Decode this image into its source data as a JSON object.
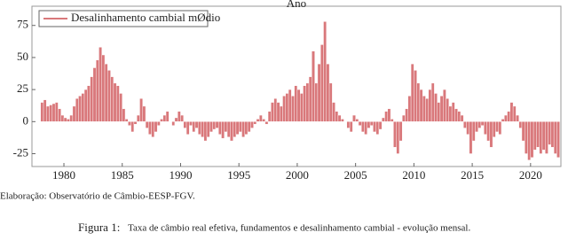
{
  "chart_data": {
    "type": "bar",
    "x_label": "Ano",
    "legend": "upper left",
    "source": "Elaboração: Observatório de Câmbio-EESP-FGV.",
    "caption_label": "Figura 1:",
    "caption": "Taxa de câmbio real efetiva, fundamentos e desalinhamento cambial - evolução mensal.",
    "xlim": [
      1977.26,
      2022.6
    ],
    "ylim": [
      -35,
      90
    ],
    "xticks": [
      1980,
      1985,
      1990,
      1995,
      2000,
      2005,
      2010,
      2015,
      2020
    ],
    "yticks": [
      -25,
      0,
      25,
      50,
      75
    ],
    "x": [
      1978,
      1978.25,
      1978.5,
      1978.75,
      1979,
      1979.25,
      1979.5,
      1979.75,
      1980,
      1980.25,
      1980.5,
      1980.75,
      1981,
      1981.25,
      1981.5,
      1981.75,
      1982,
      1982.25,
      1982.5,
      1982.75,
      1983,
      1983.25,
      1983.5,
      1983.75,
      1984,
      1984.25,
      1984.5,
      1984.75,
      1985,
      1985.25,
      1985.5,
      1985.75,
      1986,
      1986.25,
      1986.5,
      1986.75,
      1987,
      1987.25,
      1987.5,
      1987.75,
      1988,
      1988.25,
      1988.5,
      1988.75,
      1989,
      1989.25,
      1989.5,
      1989.75,
      1990,
      1990.25,
      1990.5,
      1990.75,
      1991,
      1991.25,
      1991.5,
      1991.75,
      1992,
      1992.25,
      1992.5,
      1992.75,
      1993,
      1993.25,
      1993.5,
      1993.75,
      1994,
      1994.25,
      1994.5,
      1994.75,
      1995,
      1995.25,
      1995.5,
      1995.75,
      1996,
      1996.25,
      1996.5,
      1996.75,
      1997,
      1997.25,
      1997.5,
      1997.75,
      1998,
      1998.25,
      1998.5,
      1998.75,
      1999,
      1999.25,
      1999.5,
      1999.75,
      2000,
      2000.25,
      2000.5,
      2000.75,
      2001,
      2001.25,
      2001.5,
      2001.75,
      2002,
      2002.25,
      2002.5,
      2002.75,
      2003,
      2003.25,
      2003.5,
      2003.75,
      2004,
      2004.25,
      2004.5,
      2004.75,
      2005,
      2005.25,
      2005.5,
      2005.75,
      2006,
      2006.25,
      2006.5,
      2006.75,
      2007,
      2007.25,
      2007.5,
      2007.75,
      2008,
      2008.25,
      2008.5,
      2008.75,
      2009,
      2009.25,
      2009.5,
      2009.75,
      2010,
      2010.25,
      2010.5,
      2010.75,
      2011,
      2011.25,
      2011.5,
      2011.75,
      2012,
      2012.25,
      2012.5,
      2012.75,
      2013,
      2013.25,
      2013.5,
      2013.75,
      2014,
      2014.25,
      2014.5,
      2014.75,
      2015,
      2015.25,
      2015.5,
      2015.75,
      2016,
      2016.25,
      2016.5,
      2016.75,
      2017,
      2017.25,
      2017.5,
      2017.75,
      2018,
      2018.25,
      2018.5,
      2018.75,
      2019,
      2019.25,
      2019.5,
      2019.75,
      2020,
      2020.25,
      2020.5,
      2020.75,
      2021,
      2021.25,
      2021.5,
      2021.75,
      2022,
      2022.25
    ],
    "series": [
      {
        "name": "Desalinhamento cambial mØdio",
        "color": "#d9787b",
        "values": [
          15,
          17,
          12,
          13,
          14,
          15,
          10,
          5,
          3,
          2,
          5,
          12,
          18,
          20,
          22,
          25,
          28,
          35,
          42,
          48,
          58,
          52,
          45,
          40,
          35,
          30,
          28,
          22,
          10,
          2,
          -3,
          -8,
          -2,
          5,
          18,
          12,
          -5,
          -10,
          -12,
          -8,
          -3,
          2,
          5,
          8,
          0,
          -3,
          3,
          8,
          5,
          -5,
          -10,
          -3,
          -8,
          -5,
          -10,
          -12,
          -15,
          -12,
          -8,
          -6,
          -5,
          -10,
          -13,
          -8,
          -12,
          -15,
          -12,
          -10,
          -8,
          -12,
          -10,
          -8,
          -5,
          -2,
          2,
          5,
          2,
          -2,
          8,
          15,
          18,
          15,
          12,
          20,
          22,
          25,
          20,
          28,
          25,
          22,
          28,
          30,
          35,
          55,
          30,
          45,
          60,
          78,
          45,
          30,
          15,
          8,
          5,
          2,
          0,
          -5,
          -8,
          5,
          2,
          -3,
          -8,
          -10,
          -5,
          -3,
          -8,
          -10,
          -6,
          3,
          8,
          10,
          2,
          -20,
          -25,
          -15,
          5,
          10,
          20,
          45,
          40,
          30,
          25,
          20,
          18,
          25,
          30,
          22,
          15,
          20,
          25,
          18,
          12,
          15,
          10,
          8,
          5,
          -5,
          -10,
          -25,
          -15,
          -8,
          -5,
          -3,
          -10,
          -15,
          -20,
          -12,
          -8,
          -10,
          2,
          5,
          8,
          15,
          12,
          5,
          -5,
          -15,
          -25,
          -30,
          -28,
          -22,
          -20,
          -25,
          -22,
          -25,
          -18,
          -20,
          -25,
          -28
        ]
      }
    ]
  }
}
